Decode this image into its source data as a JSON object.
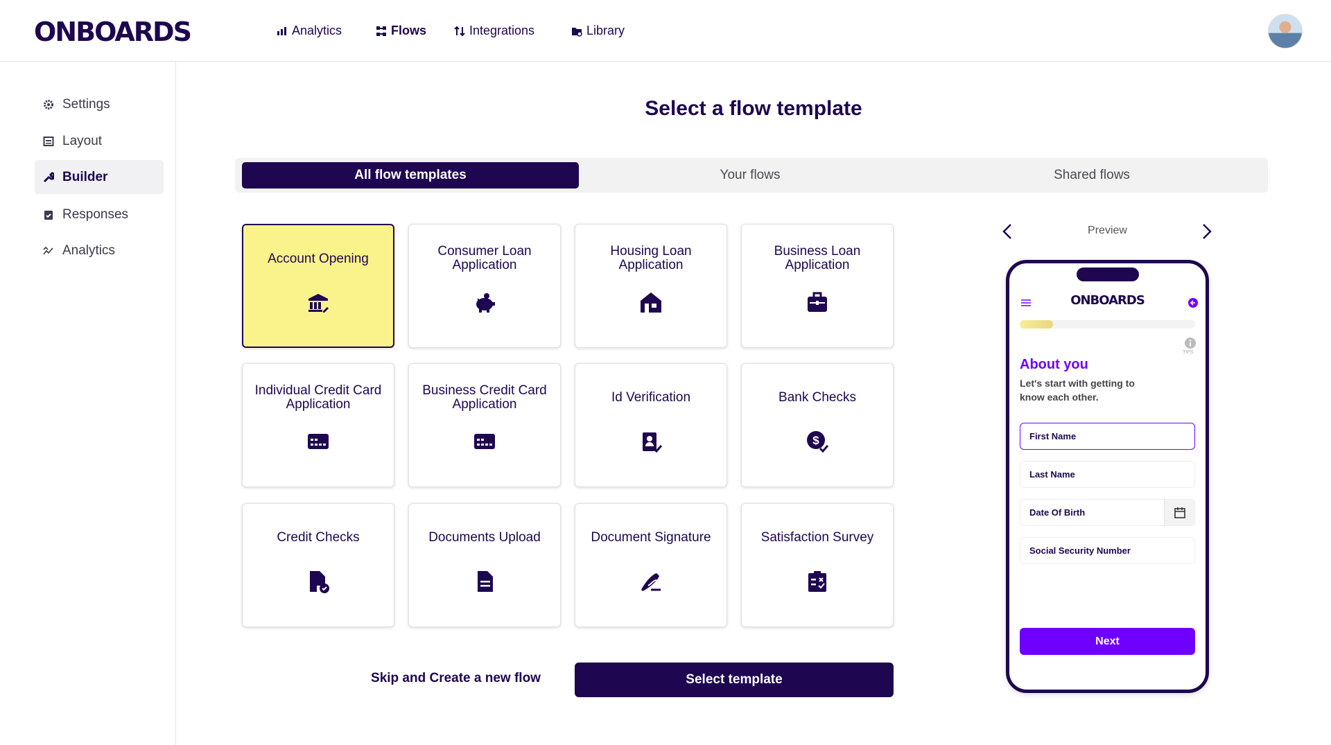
{
  "header": {
    "logo": "ONBOARDS",
    "nav": [
      {
        "label": "Analytics",
        "icon": "bar-chart-icon"
      },
      {
        "label": "Flows",
        "icon": "flows-icon",
        "active": true
      },
      {
        "label": "Integrations",
        "icon": "integrations-icon"
      },
      {
        "label": "Library",
        "icon": "library-folder-icon"
      }
    ]
  },
  "sidebar": {
    "items": [
      {
        "label": "Settings",
        "icon": "gear-icon"
      },
      {
        "label": "Layout",
        "icon": "layout-icon"
      },
      {
        "label": "Builder",
        "icon": "wrench-icon",
        "active": true
      },
      {
        "label": "Responses",
        "icon": "clipboard-check-icon"
      },
      {
        "label": "Analytics",
        "icon": "trend-icon"
      }
    ]
  },
  "main": {
    "title": "Select a flow template",
    "tabs": [
      {
        "label": "All flow templates",
        "active": true
      },
      {
        "label": "Your flows"
      },
      {
        "label": "Shared flows"
      }
    ],
    "templates": [
      {
        "label": "Account Opening",
        "icon": "bank-icon",
        "selected": true
      },
      {
        "label": "Consumer Loan Application",
        "icon": "piggy-bank-icon"
      },
      {
        "label": "Housing Loan Application",
        "icon": "house-icon"
      },
      {
        "label": "Business Loan Application",
        "icon": "briefcase-icon"
      },
      {
        "label": "Individual Credit Card Application",
        "icon": "credit-card-icon"
      },
      {
        "label": "Business Credit Card Application",
        "icon": "credit-card-icon"
      },
      {
        "label": "Id Verification",
        "icon": "id-badge-check-icon"
      },
      {
        "label": "Bank Checks",
        "icon": "dollar-check-icon"
      },
      {
        "label": "Credit Checks",
        "icon": "file-check-icon"
      },
      {
        "label": "Documents Upload",
        "icon": "document-icon"
      },
      {
        "label": "Document Signature",
        "icon": "signature-icon"
      },
      {
        "label": "Satisfaction Survey",
        "icon": "survey-clipboard-icon"
      }
    ],
    "skip_label": "Skip and Create a new flow",
    "select_label": "Select template"
  },
  "preview": {
    "label": "Preview",
    "logo": "ONBOARDS",
    "progress": 0.19,
    "tips": "TIPS",
    "heading": "About you",
    "subheading": "Let's start with getting to know each other.",
    "fields": [
      "First Name",
      "Last Name",
      "Date Of Birth",
      "Social Security Number"
    ],
    "next": "Next"
  },
  "colors": {
    "primary": "#1e0650",
    "accent": "#6f00ff",
    "selected_card": "#faf38b"
  }
}
